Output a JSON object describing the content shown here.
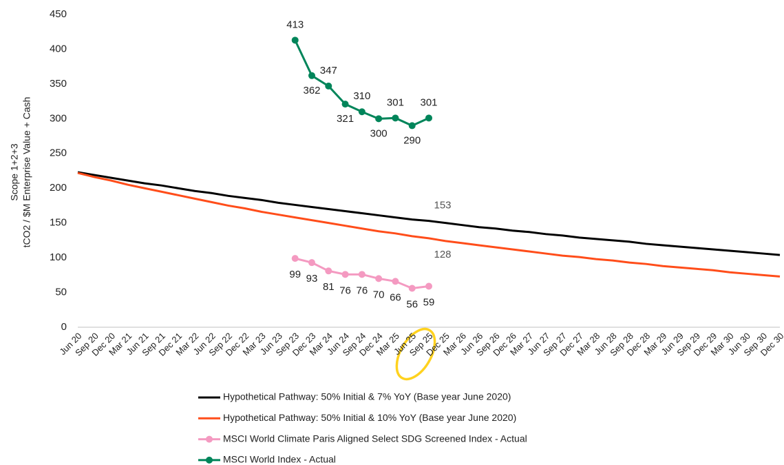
{
  "chart_data": {
    "type": "line",
    "ylabel": [
      "Scope 1+2+3",
      "tCO2 / $M Enterprise Value + Cash"
    ],
    "categories": [
      "Jun 20",
      "Sep 20",
      "Dec 20",
      "Mar 21",
      "Jun 21",
      "Sep 21",
      "Dec 21",
      "Mar 22",
      "Jun 22",
      "Sep 22",
      "Dec 22",
      "Mar 23",
      "Jun 23",
      "Sep 23",
      "Dec 23",
      "Mar 24",
      "Jun 24",
      "Sep 24",
      "Dec 24",
      "Mar 25",
      "Jun 25",
      "Sep 25",
      "Dec 25",
      "Mar 26",
      "Jun 26",
      "Sep 26",
      "Dec 26",
      "Mar 27",
      "Jun 27",
      "Sep 27",
      "Dec 27",
      "Mar 28",
      "Jun 28",
      "Sep 28",
      "Dec 28",
      "Mar 29",
      "Jun 29",
      "Sep 29",
      "Dec 29",
      "Mar 30",
      "Jun 30",
      "Sep 30",
      "Dec 30"
    ],
    "series": [
      {
        "name": "Hypothetical Pathway: 50% Initial & 7% YoY (Base year June 2020)",
        "color": "#000000",
        "markers": false,
        "values": [
          223,
          219,
          215,
          211,
          207,
          204,
          200,
          196,
          193,
          189,
          186,
          183,
          179,
          176,
          173,
          170,
          167,
          164,
          161,
          158,
          155,
          153,
          150,
          147,
          144,
          142,
          139,
          137,
          134,
          132,
          129,
          127,
          125,
          123,
          120,
          118,
          116,
          114,
          112,
          110,
          108,
          106,
          104
        ],
        "value_labels": [
          null,
          null,
          null,
          null,
          null,
          null,
          null,
          null,
          null,
          null,
          null,
          null,
          null,
          null,
          null,
          null,
          null,
          null,
          null,
          null,
          null,
          "153",
          null,
          null,
          null,
          null,
          null,
          null,
          null,
          null,
          null,
          null,
          null,
          null,
          null,
          null,
          null,
          null,
          null,
          null,
          null,
          null,
          null
        ]
      },
      {
        "name": "Hypothetical Pathway: 50% Initial & 10% YoY (Base year June 2020)",
        "color": "#ff4d1a",
        "markers": false,
        "values": [
          222,
          216,
          211,
          205,
          200,
          195,
          190,
          185,
          180,
          175,
          171,
          166,
          162,
          158,
          154,
          150,
          146,
          142,
          138,
          135,
          131,
          128,
          124,
          121,
          118,
          115,
          112,
          109,
          106,
          103,
          101,
          98,
          96,
          93,
          91,
          88,
          86,
          84,
          82,
          79,
          77,
          75,
          73
        ],
        "value_labels": [
          null,
          null,
          null,
          null,
          null,
          null,
          null,
          null,
          null,
          null,
          null,
          null,
          null,
          null,
          null,
          null,
          null,
          null,
          null,
          null,
          null,
          "128",
          null,
          null,
          null,
          null,
          null,
          null,
          null,
          null,
          null,
          null,
          null,
          null,
          null,
          null,
          null,
          null,
          null,
          null,
          null,
          null,
          null
        ]
      },
      {
        "name": "MSCI World Climate Paris Aligned Select SDG Screened Index - Actual",
        "color": "#f49ac1",
        "markers": true,
        "values": [
          null,
          null,
          null,
          null,
          null,
          null,
          null,
          null,
          null,
          null,
          null,
          null,
          null,
          99,
          93,
          81,
          76,
          76,
          70,
          66,
          56,
          59,
          null,
          null,
          null,
          null,
          null,
          null,
          null,
          null,
          null,
          null,
          null,
          null,
          null,
          null,
          null,
          null,
          null,
          null,
          null,
          null,
          null
        ],
        "value_labels": [
          null,
          null,
          null,
          null,
          null,
          null,
          null,
          null,
          null,
          null,
          null,
          null,
          null,
          "99",
          "93",
          "81",
          "76",
          "76",
          "70",
          "66",
          "56",
          "59",
          null,
          null,
          null,
          null,
          null,
          null,
          null,
          null,
          null,
          null,
          null,
          null,
          null,
          null,
          null,
          null,
          null,
          null,
          null,
          null,
          null
        ]
      },
      {
        "name": "MSCI World Index - Actual",
        "color": "#00855a",
        "markers": true,
        "values": [
          null,
          null,
          null,
          null,
          null,
          null,
          null,
          null,
          null,
          null,
          null,
          null,
          null,
          413,
          362,
          347,
          321,
          310,
          300,
          301,
          290,
          301,
          null,
          null,
          null,
          null,
          null,
          null,
          null,
          null,
          null,
          null,
          null,
          null,
          null,
          null,
          null,
          null,
          null,
          null,
          null,
          null,
          null
        ],
        "value_labels": [
          null,
          null,
          null,
          null,
          null,
          null,
          null,
          null,
          null,
          null,
          null,
          null,
          null,
          "413",
          "362",
          "347",
          "321",
          "310",
          "300",
          "301",
          "290",
          "301",
          null,
          null,
          null,
          null,
          null,
          null,
          null,
          null,
          null,
          null,
          null,
          null,
          null,
          null,
          null,
          null,
          null,
          null,
          null,
          null,
          null
        ]
      }
    ],
    "ylim": [
      0,
      450
    ],
    "yticks": [
      0,
      50,
      100,
      150,
      200,
      250,
      300,
      350,
      400,
      450
    ],
    "grid": false,
    "legend": "bottom"
  }
}
